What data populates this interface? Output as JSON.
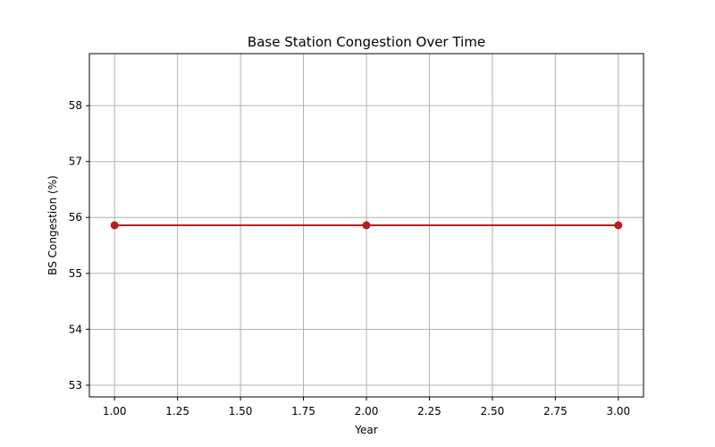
{
  "chart_data": {
    "type": "line",
    "title": "Base Station Congestion Over Time",
    "xlabel": "Year",
    "ylabel": "BS Congestion (%)",
    "x": [
      1.0,
      2.0,
      3.0
    ],
    "series": [
      {
        "values": [
          55.86,
          55.86,
          55.86
        ],
        "color": "#b22222"
      }
    ],
    "xlim": [
      0.9,
      3.1
    ],
    "ylim": [
      52.79,
      58.93
    ],
    "xticks": [
      1.0,
      1.25,
      1.5,
      1.75,
      2.0,
      2.25,
      2.5,
      2.75,
      3.0
    ],
    "xtick_labels": [
      "1.00",
      "1.25",
      "1.50",
      "1.75",
      "2.00",
      "2.25",
      "2.50",
      "2.75",
      "3.00"
    ],
    "yticks": [
      53,
      54,
      55,
      56,
      57,
      58
    ],
    "ytick_labels": [
      "53",
      "54",
      "55",
      "56",
      "57",
      "58"
    ],
    "grid": true,
    "grid_color": "#b0b0b0",
    "marker": "circle"
  }
}
